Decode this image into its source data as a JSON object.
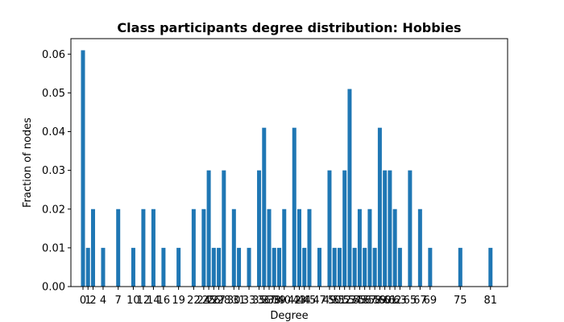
{
  "chart_data": {
    "type": "bar",
    "title": "Class participants degree distribution: Hobbies",
    "xlabel": "Degree",
    "ylabel": "Fraction of nodes",
    "bar_color": "#1f77b4",
    "xlim": [
      -2.4,
      84.4
    ],
    "ylim": [
      0,
      0.064
    ],
    "y_ticks": [
      0.0,
      0.01,
      0.02,
      0.03,
      0.04,
      0.05,
      0.06
    ],
    "y_tick_labels": [
      "0.00",
      "0.01",
      "0.02",
      "0.03",
      "0.04",
      "0.05",
      "0.06"
    ],
    "x_ticks": [
      0,
      1,
      2,
      4,
      7,
      10,
      12,
      14,
      16,
      19,
      22,
      24,
      25,
      26,
      27,
      28,
      30,
      31,
      33,
      35,
      36,
      37,
      38,
      39,
      40,
      42,
      43,
      44,
      45,
      47,
      49,
      50,
      51,
      52,
      53,
      54,
      55,
      56,
      57,
      58,
      59,
      60,
      61,
      62,
      63,
      65,
      67,
      69,
      75,
      81
    ],
    "x_tick_labels": [
      "0",
      "1",
      "2",
      "4",
      "7",
      "10",
      "12",
      "14",
      "16",
      "19",
      "22",
      "24",
      "25",
      "26",
      "27",
      "28",
      "30",
      "31",
      "33",
      "35",
      "36",
      "37",
      "38",
      "39",
      "40",
      "42",
      "43",
      "44",
      "45",
      "47",
      "49",
      "50",
      "51",
      "52",
      "53",
      "54",
      "55",
      "56",
      "57",
      "58",
      "59",
      "60",
      "61",
      "62",
      "63",
      "65",
      "67",
      "69",
      "75",
      "81"
    ],
    "x": [
      0,
      1,
      2,
      4,
      7,
      10,
      12,
      14,
      16,
      19,
      22,
      24,
      25,
      26,
      27,
      28,
      30,
      31,
      33,
      35,
      36,
      37,
      38,
      39,
      40,
      42,
      43,
      44,
      45,
      47,
      49,
      50,
      51,
      52,
      53,
      54,
      55,
      56,
      57,
      58,
      59,
      60,
      61,
      62,
      63,
      65,
      67,
      69,
      75,
      81
    ],
    "values": [
      0.061,
      0.01,
      0.02,
      0.01,
      0.02,
      0.01,
      0.02,
      0.02,
      0.01,
      0.01,
      0.02,
      0.02,
      0.03,
      0.01,
      0.01,
      0.03,
      0.02,
      0.01,
      0.01,
      0.03,
      0.041,
      0.02,
      0.01,
      0.01,
      0.02,
      0.041,
      0.02,
      0.01,
      0.02,
      0.01,
      0.03,
      0.01,
      0.01,
      0.03,
      0.051,
      0.01,
      0.02,
      0.01,
      0.02,
      0.01,
      0.041,
      0.03,
      0.03,
      0.02,
      0.01,
      0.03,
      0.02,
      0.01,
      0.01,
      0.01
    ],
    "grid": false,
    "legend": "none"
  }
}
